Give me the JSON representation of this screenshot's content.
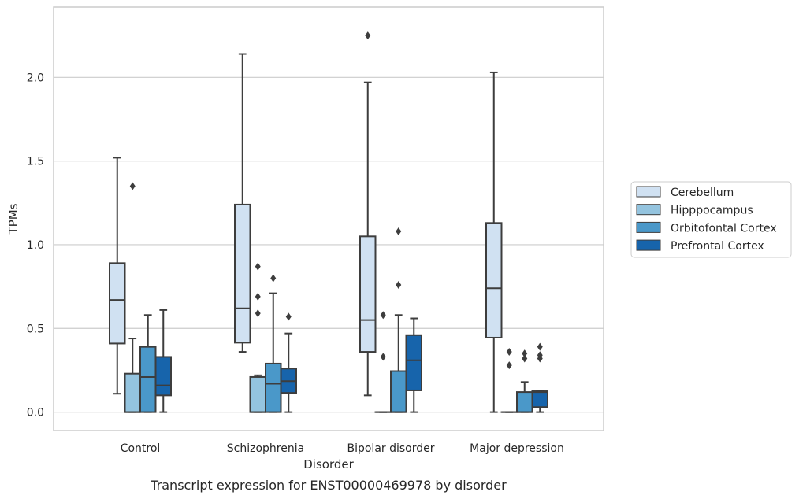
{
  "chart_data": {
    "type": "box",
    "title": "",
    "caption": "Transcript expression for ENST00000469978 by disorder",
    "xlabel": "Disorder",
    "ylabel": "TPMs",
    "ylim": [
      -0.11,
      2.42
    ],
    "yticks": [
      0.0,
      0.5,
      1.0,
      1.5,
      2.0
    ],
    "ytick_labels": [
      "0.0",
      "0.5",
      "1.0",
      "1.5",
      "2.0"
    ],
    "grid": true,
    "legend_position": "right",
    "categories": [
      "Control",
      "Schizophrenia",
      "Bipolar disorder",
      "Major depression"
    ],
    "series": [
      {
        "name": "Cerebellum",
        "color": "#d0e1f2",
        "boxes": [
          {
            "whislo": 0.11,
            "q1": 0.41,
            "med": 0.67,
            "q3": 0.89,
            "whishi": 1.52,
            "fliers": []
          },
          {
            "whislo": 0.36,
            "q1": 0.415,
            "med": 0.62,
            "q3": 1.24,
            "whishi": 2.14,
            "fliers": []
          },
          {
            "whislo": 0.1,
            "q1": 0.36,
            "med": 0.55,
            "q3": 1.05,
            "whishi": 1.97,
            "fliers": [
              2.25
            ]
          },
          {
            "whislo": 0.0,
            "q1": 0.445,
            "med": 0.74,
            "q3": 1.13,
            "whishi": 2.03,
            "fliers": []
          }
        ]
      },
      {
        "name": "Hipppocampus",
        "color": "#94c4df",
        "boxes": [
          {
            "whislo": 0.0,
            "q1": 0.0,
            "med": 0.0,
            "q3": 0.23,
            "whishi": 0.44,
            "fliers": [
              1.35
            ]
          },
          {
            "whislo": 0.0,
            "q1": 0.0,
            "med": 0.0,
            "q3": 0.21,
            "whishi": 0.22,
            "fliers": [
              0.59,
              0.69,
              0.87
            ]
          },
          {
            "whislo": 0.0,
            "q1": 0.0,
            "med": 0.0,
            "q3": 0.0,
            "whishi": 0.0,
            "fliers": [
              0.33,
              0.58
            ]
          },
          {
            "whislo": 0.0,
            "q1": 0.0,
            "med": 0.0,
            "q3": 0.0,
            "whishi": 0.0,
            "fliers": [
              0.28,
              0.36
            ]
          }
        ]
      },
      {
        "name": "Orbitofontal Cortex",
        "color": "#4a98c9",
        "boxes": [
          {
            "whislo": 0.0,
            "q1": 0.0,
            "med": 0.21,
            "q3": 0.39,
            "whishi": 0.58,
            "fliers": []
          },
          {
            "whislo": 0.0,
            "q1": 0.0,
            "med": 0.17,
            "q3": 0.29,
            "whishi": 0.71,
            "fliers": [
              0.8
            ]
          },
          {
            "whislo": 0.0,
            "q1": 0.0,
            "med": 0.0,
            "q3": 0.245,
            "whishi": 0.58,
            "fliers": [
              0.76,
              1.08
            ]
          },
          {
            "whislo": 0.0,
            "q1": 0.0,
            "med": 0.0,
            "q3": 0.12,
            "whishi": 0.18,
            "fliers": [
              0.32,
              0.35
            ]
          }
        ]
      },
      {
        "name": "Prefrontal Cortex",
        "color": "#1764ab",
        "boxes": [
          {
            "whislo": 0.0,
            "q1": 0.1,
            "med": 0.16,
            "q3": 0.33,
            "whishi": 0.61,
            "fliers": []
          },
          {
            "whislo": 0.0,
            "q1": 0.115,
            "med": 0.185,
            "q3": 0.26,
            "whishi": 0.47,
            "fliers": [
              0.57
            ]
          },
          {
            "whislo": 0.0,
            "q1": 0.13,
            "med": 0.31,
            "q3": 0.46,
            "whishi": 0.56,
            "fliers": []
          },
          {
            "whislo": 0.0,
            "q1": 0.03,
            "med": 0.12,
            "q3": 0.125,
            "whishi": 0.125,
            "fliers": [
              0.32,
              0.34,
              0.39
            ]
          }
        ]
      }
    ]
  }
}
